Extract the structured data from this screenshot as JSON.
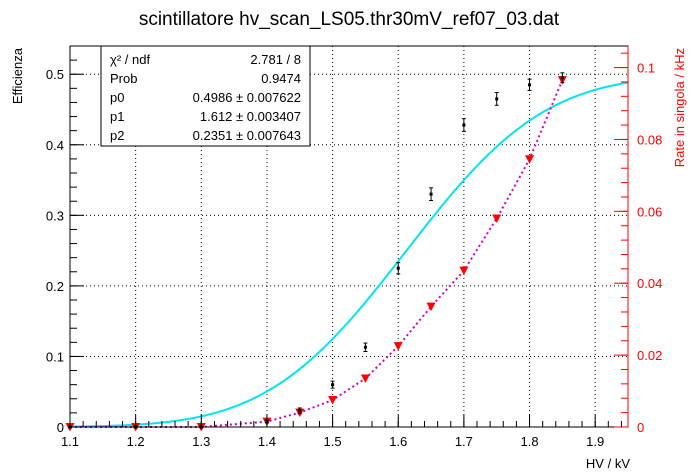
{
  "chart_data": {
    "type": "scatter",
    "title": "scintillatore hv_scan_LS05.thr30mV_ref07_03.dat",
    "xlabel": "HV / kV",
    "ylabel": "Efficienza",
    "y2label": "Rate in singola / kHz",
    "xlim": [
      1.1,
      1.95
    ],
    "ylim": [
      0,
      0.54
    ],
    "y2lim": [
      0,
      0.106
    ],
    "grid": true,
    "x_ticks": [
      "1.1",
      "1.2",
      "1.3",
      "1.4",
      "1.5",
      "1.6",
      "1.7",
      "1.8",
      "1.9"
    ],
    "y_ticks": [
      "0",
      "0.1",
      "0.2",
      "0.3",
      "0.4",
      "0.5"
    ],
    "y2_ticks": [
      "0",
      "0.02",
      "0.04",
      "0.06",
      "0.08",
      "0.1"
    ],
    "series": [
      {
        "name": "",
        "axis": "left",
        "style": "points-with-errors",
        "color": "#000000",
        "x": [
          1.1,
          1.2,
          1.3,
          1.4,
          1.45,
          1.5,
          1.55,
          1.6,
          1.65,
          1.7,
          1.75,
          1.8,
          1.85
        ],
        "y": [
          0.0,
          0.0,
          0.0,
          0.008,
          0.023,
          0.06,
          0.113,
          0.225,
          0.33,
          0.428,
          0.465,
          0.485,
          0.495
        ],
        "err": [
          0.001,
          0.001,
          0.001,
          0.002,
          0.004,
          0.005,
          0.006,
          0.008,
          0.009,
          0.009,
          0.009,
          0.008,
          0.007
        ]
      },
      {
        "name": "",
        "axis": "left",
        "style": "fit-curve",
        "color": "#00e5f0",
        "model": "p0/2*(1+erf((x-p1)/p2))",
        "x_range": [
          1.1,
          1.95
        ],
        "p0": 0.4986,
        "p1": 1.612,
        "p2": 0.2351
      },
      {
        "name": "",
        "axis": "right",
        "style": "triangles-dotted",
        "color": "#ff0000",
        "line_color": "#cc00cc",
        "x": [
          1.1,
          1.2,
          1.3,
          1.4,
          1.45,
          1.5,
          1.55,
          1.6,
          1.65,
          1.7,
          1.75,
          1.8,
          1.85
        ],
        "y": [
          0.0,
          0.0,
          0.0,
          0.0015,
          0.004,
          0.0075,
          0.0135,
          0.0225,
          0.0335,
          0.0435,
          0.058,
          0.0745,
          0.0965
        ]
      }
    ],
    "stats_box": {
      "rows": [
        {
          "label": "χ² / ndf",
          "value": "2.781 / 8"
        },
        {
          "label": "Prob",
          "value": "0.9474"
        },
        {
          "label": "p0",
          "value": "0.4986 ± 0.007622"
        },
        {
          "label": "p1",
          "value": "1.612 ± 0.003407"
        },
        {
          "label": "p2",
          "value": "0.2351 ± 0.007643"
        }
      ]
    },
    "colors": {
      "axis_left": "#000000",
      "axis_right": "#ff0000",
      "fit": "#00e5f0",
      "rate_line": "#cc00cc",
      "rate_marker": "#ff0000"
    }
  }
}
